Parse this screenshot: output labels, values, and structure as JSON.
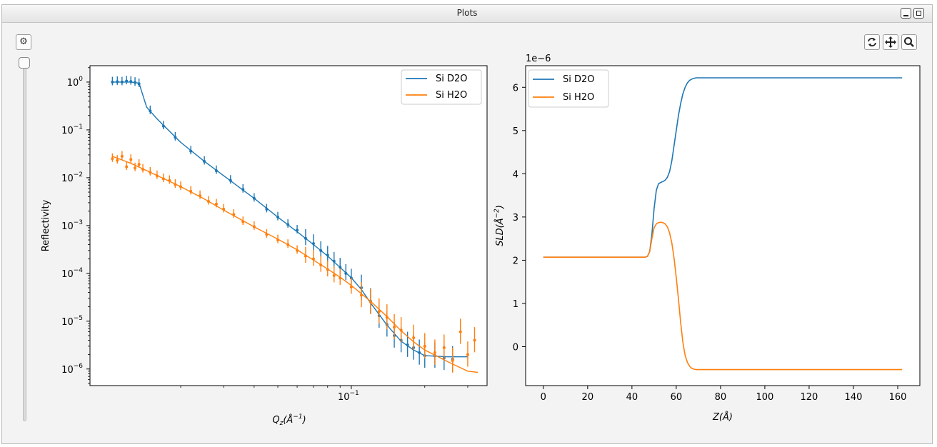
{
  "window": {
    "title": "Plots"
  },
  "icons": {
    "gear": "gear-icon",
    "refresh": "refresh-icon",
    "pan": "pan-icon",
    "zoom": "zoom-icon",
    "minimize": "minimize-icon",
    "maximize": "maximize-icon"
  },
  "colors": {
    "series1": "#1f77b4",
    "series2": "#ff7f0e"
  },
  "chart_data": [
    {
      "type": "line",
      "title": "",
      "xlabel": "Q_z(Å^-1)",
      "ylabel": "Reflectivity",
      "xscale": "log",
      "yscale": "log",
      "xlim": [
        0.0085,
        0.36
      ],
      "ylim": [
        4.5e-07,
        2.2
      ],
      "x_tick_labels": [
        {
          "value": 0.1,
          "label": "10^-1"
        }
      ],
      "y_tick_labels": [
        {
          "value": 1,
          "label": "10^0"
        },
        {
          "value": 0.1,
          "label": "10^-1"
        },
        {
          "value": 0.01,
          "label": "10^-2"
        },
        {
          "value": 0.001,
          "label": "10^-3"
        },
        {
          "value": 0.0001,
          "label": "10^-4"
        },
        {
          "value": 1e-05,
          "label": "10^-5"
        },
        {
          "value": 1e-06,
          "label": "10^-6"
        }
      ],
      "legend": {
        "position": "top-right",
        "entries": [
          "Si D2O",
          "Si H2O"
        ]
      },
      "series": [
        {
          "name": "Si D2O",
          "color": "#1f77b4",
          "fit": [
            [
              0.0105,
              1.0
            ],
            [
              0.0125,
              1.0
            ],
            [
              0.0135,
              0.95
            ],
            [
              0.0145,
              0.3
            ],
            [
              0.016,
              0.17
            ],
            [
              0.02,
              0.055
            ],
            [
              0.025,
              0.022
            ],
            [
              0.03,
              0.011
            ],
            [
              0.04,
              0.0037
            ],
            [
              0.05,
              0.0015
            ],
            [
              0.06,
              0.00074
            ],
            [
              0.07,
              0.0004
            ],
            [
              0.08,
              0.00023
            ],
            [
              0.09,
              0.000133
            ],
            [
              0.1,
              8.1e-05
            ],
            [
              0.11,
              4.6e-05
            ],
            [
              0.12,
              2.4e-05
            ],
            [
              0.14,
              8.3e-06
            ],
            [
              0.16,
              3.8e-06
            ],
            [
              0.18,
              2.5e-06
            ],
            [
              0.2,
              1.9e-06
            ],
            [
              0.25,
              1.8e-06
            ],
            [
              0.3,
              1.8e-06
            ]
          ],
          "points": [
            [
              0.0105,
              1.0
            ],
            [
              0.011,
              1.02
            ],
            [
              0.0115,
              1.0
            ],
            [
              0.012,
              1.05
            ],
            [
              0.0125,
              1.03
            ],
            [
              0.013,
              0.98
            ],
            [
              0.0135,
              0.92
            ],
            [
              0.015,
              0.25
            ],
            [
              0.017,
              0.12
            ],
            [
              0.019,
              0.07
            ],
            [
              0.022,
              0.036
            ],
            [
              0.025,
              0.022
            ],
            [
              0.028,
              0.014
            ],
            [
              0.032,
              0.0088
            ],
            [
              0.036,
              0.0057
            ],
            [
              0.04,
              0.0037
            ],
            [
              0.045,
              0.0022
            ],
            [
              0.05,
              0.0015
            ],
            [
              0.055,
              0.00105
            ],
            [
              0.06,
              0.0008
            ],
            [
              0.065,
              0.00054
            ],
            [
              0.07,
              0.00042
            ],
            [
              0.075,
              0.0003
            ],
            [
              0.08,
              0.00024
            ],
            [
              0.085,
              0.00018
            ],
            [
              0.09,
              0.000135
            ],
            [
              0.095,
              0.0001
            ],
            [
              0.1,
              8e-05
            ],
            [
              0.11,
              5e-05
            ],
            [
              0.12,
              2.6e-05
            ],
            [
              0.13,
              1.3e-05
            ],
            [
              0.14,
              8.5e-06
            ],
            [
              0.15,
              5e-06
            ],
            [
              0.16,
              4e-06
            ],
            [
              0.17,
              3.2e-06
            ],
            [
              0.18,
              2.8e-06
            ],
            [
              0.19,
              2.2e-06
            ],
            [
              0.2,
              1.9e-06
            ],
            [
              0.22,
              1.9e-06
            ],
            [
              0.24,
              1.7e-06
            ],
            [
              0.26,
              1.6e-06
            ]
          ]
        },
        {
          "name": "Si H2O",
          "color": "#ff7f0e",
          "fit": [
            [
              0.0105,
              0.028
            ],
            [
              0.0125,
              0.02
            ],
            [
              0.015,
              0.013
            ],
            [
              0.02,
              0.0065
            ],
            [
              0.025,
              0.0036
            ],
            [
              0.03,
              0.0021
            ],
            [
              0.04,
              0.00094
            ],
            [
              0.05,
              0.00052
            ],
            [
              0.06,
              0.00031
            ],
            [
              0.07,
              0.00019
            ],
            [
              0.08,
              0.000123
            ],
            [
              0.09,
              8.3e-05
            ],
            [
              0.1,
              5.6e-05
            ],
            [
              0.12,
              2.6e-05
            ],
            [
              0.14,
              1.25e-05
            ],
            [
              0.16,
              6.3e-06
            ],
            [
              0.18,
              3.7e-06
            ],
            [
              0.2,
              2.5e-06
            ],
            [
              0.25,
              1.4e-06
            ],
            [
              0.3,
              9e-07
            ],
            [
              0.33,
              8.5e-07
            ]
          ],
          "points": [
            [
              0.0105,
              0.025
            ],
            [
              0.011,
              0.023
            ],
            [
              0.0115,
              0.028
            ],
            [
              0.012,
              0.017
            ],
            [
              0.0125,
              0.024
            ],
            [
              0.013,
              0.016
            ],
            [
              0.0135,
              0.019
            ],
            [
              0.014,
              0.015
            ],
            [
              0.015,
              0.013
            ],
            [
              0.016,
              0.011
            ],
            [
              0.017,
              0.0095
            ],
            [
              0.018,
              0.0087
            ],
            [
              0.019,
              0.0072
            ],
            [
              0.02,
              0.0065
            ],
            [
              0.022,
              0.0052
            ],
            [
              0.024,
              0.0042
            ],
            [
              0.026,
              0.0032
            ],
            [
              0.028,
              0.0028
            ],
            [
              0.03,
              0.0022
            ],
            [
              0.033,
              0.0017
            ],
            [
              0.036,
              0.0012
            ],
            [
              0.04,
              0.00095
            ],
            [
              0.045,
              0.00065
            ],
            [
              0.05,
              0.0005
            ],
            [
              0.055,
              0.0004
            ],
            [
              0.06,
              0.0003
            ],
            [
              0.065,
              0.00023
            ],
            [
              0.07,
              0.0002
            ],
            [
              0.075,
              0.00015
            ],
            [
              0.08,
              0.00012
            ],
            [
              0.085,
              9e-05
            ],
            [
              0.09,
              8e-05
            ],
            [
              0.1,
              5.2e-05
            ],
            [
              0.11,
              3.5e-05
            ],
            [
              0.12,
              2.5e-05
            ],
            [
              0.13,
              1.6e-05
            ],
            [
              0.14,
              1.2e-05
            ],
            [
              0.15,
              7.5e-06
            ],
            [
              0.16,
              6.5e-06
            ],
            [
              0.18,
              4.5e-06
            ],
            [
              0.2,
              3e-06
            ],
            [
              0.22,
              2.2e-06
            ],
            [
              0.24,
              2.8e-06
            ],
            [
              0.26,
              1.5e-06
            ],
            [
              0.28,
              6e-06
            ],
            [
              0.3,
              2e-06
            ],
            [
              0.32,
              4e-06
            ]
          ]
        }
      ]
    },
    {
      "type": "line",
      "title": "",
      "xlabel": "Z(Å)",
      "ylabel": "SLD(Å^-2)",
      "y_offset_label": "1e−6",
      "xlim": [
        -8,
        170
      ],
      "ylim": [
        -0.9,
        6.5
      ],
      "x_ticks": [
        0,
        20,
        40,
        60,
        80,
        100,
        120,
        140,
        160
      ],
      "y_ticks": [
        0,
        1,
        2,
        3,
        4,
        5,
        6
      ],
      "legend": {
        "position": "top-left",
        "entries": [
          "Si D2O",
          "Si H2O"
        ]
      },
      "series": [
        {
          "name": "Si D2O",
          "color": "#1f77b4",
          "x": [
            0,
            46,
            47,
            48,
            49,
            50,
            51,
            52,
            53,
            54,
            55,
            56,
            57,
            58,
            59,
            60,
            61,
            62,
            63,
            64,
            65,
            66,
            67,
            68,
            69,
            70,
            72,
            75,
            80,
            100,
            162
          ],
          "values": [
            2.07,
            2.07,
            2.09,
            2.2,
            2.6,
            3.2,
            3.62,
            3.77,
            3.8,
            3.82,
            3.85,
            3.92,
            4.05,
            4.3,
            4.65,
            5.0,
            5.35,
            5.63,
            5.85,
            6.0,
            6.1,
            6.16,
            6.19,
            6.21,
            6.22,
            6.22,
            6.22,
            6.22,
            6.22,
            6.22,
            6.22
          ]
        },
        {
          "name": "Si H2O",
          "color": "#ff7f0e",
          "x": [
            0,
            46,
            47,
            48,
            49,
            50,
            51,
            52,
            53,
            54,
            55,
            56,
            57,
            58,
            59,
            60,
            61,
            62,
            63,
            64,
            65,
            66,
            67,
            68,
            69,
            70,
            72,
            75,
            80,
            100,
            162
          ],
          "values": [
            2.07,
            2.07,
            2.09,
            2.2,
            2.5,
            2.75,
            2.84,
            2.87,
            2.88,
            2.87,
            2.84,
            2.77,
            2.63,
            2.4,
            2.05,
            1.6,
            1.1,
            0.55,
            0.1,
            -0.2,
            -0.36,
            -0.45,
            -0.5,
            -0.52,
            -0.53,
            -0.53,
            -0.53,
            -0.53,
            -0.53,
            -0.53,
            -0.53
          ]
        }
      ]
    }
  ]
}
